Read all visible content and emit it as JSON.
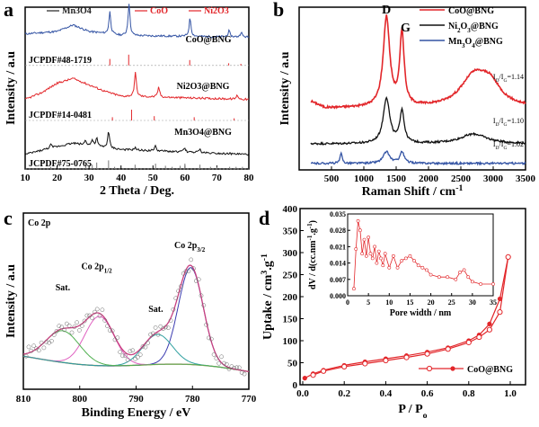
{
  "chart_data": [
    {
      "panel": "a",
      "type": "line",
      "xlabel": "2 Theta / Deg.",
      "ylabel": "Intensity / a.u",
      "xlim": [
        10,
        80
      ],
      "xticks": [
        10,
        20,
        30,
        40,
        50,
        60,
        70,
        80
      ],
      "legend": [
        {
          "name": "Mn3O4",
          "color": "#222222"
        },
        {
          "name": "CoO",
          "color": "#e2262a"
        },
        {
          "name": "Ni2O3",
          "color": "#e2262a"
        }
      ],
      "series": [
        {
          "name": "CoO@BNG",
          "color": "#3454a4",
          "baseline": 0.8,
          "background": [
            [
              10,
              0.07
            ],
            [
              20,
              0.1
            ],
            [
              25,
              0.18
            ],
            [
              30,
              0.1
            ],
            [
              40,
              0.05
            ],
            [
              80,
              0.03
            ]
          ],
          "peaks": [
            [
              36.5,
              0.55
            ],
            [
              42.5,
              0.8
            ],
            [
              61.6,
              0.45
            ],
            [
              73.8,
              0.15
            ],
            [
              77.6,
              0.12
            ]
          ]
        },
        {
          "name": "Ni2O3@BNG",
          "color": "#e2262a",
          "baseline": 0.42,
          "background": [
            [
              10,
              0.02
            ],
            [
              15,
              0.1
            ],
            [
              20,
              0.22
            ],
            [
              25,
              0.28
            ],
            [
              30,
              0.2
            ],
            [
              35,
              0.12
            ],
            [
              40,
              0.06
            ],
            [
              80,
              0.02
            ]
          ],
          "peaks": [
            [
              44.5,
              0.6
            ],
            [
              51.8,
              0.25
            ],
            [
              76.4,
              0.1
            ]
          ]
        },
        {
          "name": "Mn3O4@BNG",
          "color": "#111111",
          "baseline": 0.08,
          "background": [
            [
              10,
              0.02
            ],
            [
              18,
              0.1
            ],
            [
              25,
              0.16
            ],
            [
              30,
              0.13
            ],
            [
              40,
              0.08
            ],
            [
              80,
              0.02
            ]
          ],
          "peaks": [
            [
              18.0,
              0.08
            ],
            [
              28.9,
              0.12
            ],
            [
              31.0,
              0.14
            ],
            [
              32.4,
              0.2
            ],
            [
              36.1,
              0.4
            ],
            [
              44.4,
              0.06
            ],
            [
              50.7,
              0.12
            ],
            [
              59.9,
              0.1
            ],
            [
              64.6,
              0.08
            ]
          ]
        }
      ],
      "references": [
        {
          "label": "JCPDF#48-1719",
          "color": "#e2262a",
          "baseline": 0.64,
          "sticks": [
            [
              36.5,
              0.6
            ],
            [
              42.4,
              1.0
            ],
            [
              61.5,
              0.5
            ],
            [
              73.7,
              0.2
            ],
            [
              77.5,
              0.15
            ]
          ]
        },
        {
          "label": "JCPDF#14-0481",
          "color": "#e2262a",
          "baseline": 0.3,
          "sticks": [
            [
              37.3,
              0.3
            ],
            [
              43.3,
              1.0
            ],
            [
              50.4,
              0.4
            ],
            [
              62.9,
              0.3
            ],
            [
              75.4,
              0.2
            ]
          ]
        },
        {
          "label": "JCPDF#75-0765",
          "color": "#777777",
          "baseline": 0.0,
          "sticks": [
            [
              18,
              0.2
            ],
            [
              29,
              0.3
            ],
            [
              31,
              0.4
            ],
            [
              32.4,
              0.6
            ],
            [
              36.1,
              0.8
            ],
            [
              38,
              0.2
            ],
            [
              44.4,
              0.4
            ],
            [
              50.8,
              0.5
            ],
            [
              53.9,
              0.3
            ],
            [
              56,
              0.2
            ],
            [
              58.5,
              0.3
            ],
            [
              60,
              0.5
            ],
            [
              64.7,
              0.4
            ],
            [
              68,
              0.2
            ],
            [
              70,
              0.2
            ],
            [
              74,
              0.2
            ],
            [
              76,
              0.2
            ],
            [
              78,
              0.2
            ]
          ]
        }
      ]
    },
    {
      "panel": "b",
      "type": "line",
      "xlabel": "Raman Shift / cm",
      "xlabel_sup": "-1",
      "ylabel": "Intensity / a.u",
      "xlim": [
        0,
        3500
      ],
      "xticks": [
        500,
        1000,
        1500,
        2000,
        2500,
        3000,
        3500
      ],
      "peak_labels": [
        {
          "text": "D",
          "x": 1350
        },
        {
          "text": "G",
          "x": 1590
        }
      ],
      "series": [
        {
          "name": "CoO@BNG",
          "color": "#e2262a",
          "baseline": 0.38,
          "ratio": "1.14",
          "bands": [
            [
              1350,
              0.55,
              60
            ],
            [
              1590,
              0.45,
              40
            ],
            [
              2700,
              0.18,
              250
            ],
            [
              2950,
              0.12,
              200
            ]
          ]
        },
        {
          "name": "Ni2O3@BNG",
          "color": "#111111",
          "baseline": 0.16,
          "ratio": "1.10",
          "bands": [
            [
              1350,
              0.28,
              60
            ],
            [
              1590,
              0.2,
              40
            ],
            [
              2700,
              0.06,
              250
            ]
          ]
        },
        {
          "name": "Mn3O4@BNG",
          "color": "#3454a4",
          "baseline": 0.04,
          "ratio": "1.02",
          "bands": [
            [
              650,
              0.06,
              20
            ],
            [
              1350,
              0.07,
              60
            ],
            [
              1590,
              0.07,
              40
            ]
          ]
        }
      ]
    },
    {
      "panel": "c",
      "type": "scatter",
      "title": "Co 2p",
      "xlabel": "Binding Energy / eV",
      "ylabel": "Intensity / a.u",
      "xlim": [
        810,
        770
      ],
      "xticks": [
        810,
        800,
        790,
        780,
        770
      ],
      "annotations": [
        {
          "text": "Sat.",
          "x": 803
        },
        {
          "text": "Co 2p",
          "sub": "1/2",
          "x": 797
        },
        {
          "text": "Sat.",
          "x": 786.5
        },
        {
          "text": "Co 2p",
          "sub": "3/2",
          "x": 780.5
        }
      ],
      "components": [
        {
          "center": 780.3,
          "height": 0.55,
          "width": 2.2,
          "color": "#3b3bb0"
        },
        {
          "center": 796.5,
          "height": 0.28,
          "width": 2.6,
          "color": "#e060c0"
        },
        {
          "center": 786.2,
          "height": 0.17,
          "width": 2.6,
          "color": "#30a0a0"
        },
        {
          "center": 803.0,
          "height": 0.18,
          "width": 3.0,
          "color": "#50b050"
        }
      ],
      "background_color": "#c8c060",
      "fit_color": "#c84080"
    },
    {
      "panel": "d",
      "type": "line",
      "xlabel": "P / P",
      "xlabel_sub": "o",
      "ylabel": "Uptake / cm",
      "ylabel_sup1": "3",
      "ylabel_mid": ".g",
      "ylabel_sup2": "-1",
      "xlim": [
        0.0,
        1.0
      ],
      "ylim": [
        0,
        400
      ],
      "xticks": [
        0.0,
        0.2,
        0.4,
        0.6,
        0.8,
        1.0
      ],
      "yticks": [
        0,
        50,
        100,
        150,
        200,
        250,
        300,
        350,
        400
      ],
      "legend": "CoO@BNG",
      "adsorption": [
        [
          0.01,
          15
        ],
        [
          0.05,
          25
        ],
        [
          0.1,
          33
        ],
        [
          0.2,
          44
        ],
        [
          0.3,
          52
        ],
        [
          0.4,
          59
        ],
        [
          0.5,
          66
        ],
        [
          0.6,
          74
        ],
        [
          0.7,
          84
        ],
        [
          0.8,
          100
        ],
        [
          0.85,
          113
        ],
        [
          0.9,
          138
        ],
        [
          0.95,
          195
        ],
        [
          0.99,
          290
        ]
      ],
      "desorption": [
        [
          0.99,
          290
        ],
        [
          0.95,
          165
        ],
        [
          0.9,
          125
        ],
        [
          0.85,
          108
        ],
        [
          0.8,
          96
        ],
        [
          0.7,
          81
        ],
        [
          0.6,
          70
        ],
        [
          0.5,
          62
        ],
        [
          0.4,
          55
        ],
        [
          0.3,
          48
        ],
        [
          0.2,
          41
        ],
        [
          0.1,
          31
        ],
        [
          0.05,
          22
        ]
      ],
      "color": "#e2262a",
      "inset": {
        "xlabel": "Pore width / nm",
        "ylabel": "dV / d(cc.nm",
        "ylabel_sup1": "-1",
        "ylabel_mid": ".g",
        "ylabel_sup2": "-1",
        "ylabel_end": ")",
        "xlim": [
          0,
          35
        ],
        "ylim": [
          0,
          0.035
        ],
        "xticks": [
          0,
          5,
          10,
          15,
          20,
          25,
          30,
          35
        ],
        "yticks": [
          0.0,
          0.007,
          0.014,
          0.021,
          0.028,
          0.035
        ],
        "ytick_labels": [
          "0.000",
          "0.007",
          "0.014",
          "0.021",
          "0.028",
          "0.035"
        ],
        "points": [
          [
            1.5,
            0.003
          ],
          [
            2.0,
            0.02
          ],
          [
            2.5,
            0.032
          ],
          [
            3.0,
            0.028
          ],
          [
            3.5,
            0.018
          ],
          [
            4.0,
            0.024
          ],
          [
            4.5,
            0.017
          ],
          [
            5.0,
            0.025
          ],
          [
            5.5,
            0.018
          ],
          [
            6.0,
            0.016
          ],
          [
            6.5,
            0.021
          ],
          [
            7.0,
            0.014
          ],
          [
            7.5,
            0.019
          ],
          [
            8.0,
            0.016
          ],
          [
            8.5,
            0.013
          ],
          [
            9.0,
            0.018
          ],
          [
            10.0,
            0.012
          ],
          [
            11.0,
            0.017
          ],
          [
            12.0,
            0.012
          ],
          [
            13.0,
            0.015
          ],
          [
            14.0,
            0.016
          ],
          [
            15.0,
            0.017
          ],
          [
            16.0,
            0.015
          ],
          [
            17.0,
            0.013
          ],
          [
            18.0,
            0.012
          ],
          [
            19.0,
            0.011
          ],
          [
            20.0,
            0.009
          ],
          [
            22.0,
            0.008
          ],
          [
            24.0,
            0.008
          ],
          [
            26.0,
            0.007
          ],
          [
            27.0,
            0.01
          ],
          [
            28.0,
            0.011
          ],
          [
            29.0,
            0.008
          ],
          [
            30.0,
            0.006
          ],
          [
            32.0,
            0.005
          ],
          [
            35.0,
            0.005
          ]
        ]
      }
    }
  ]
}
